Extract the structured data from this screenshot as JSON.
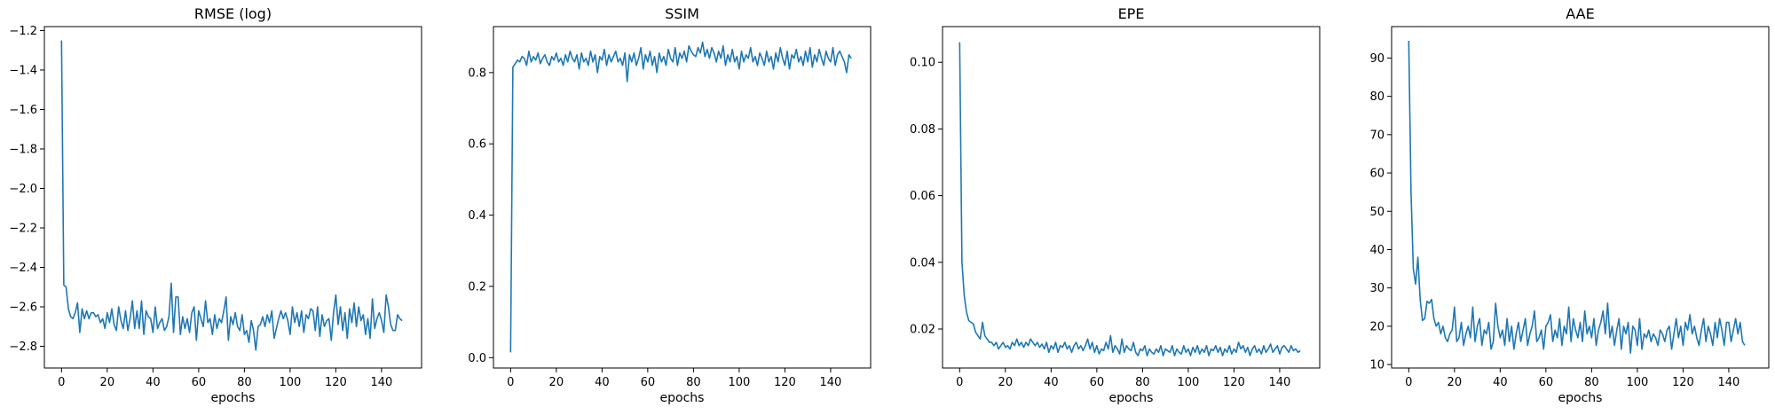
{
  "chart_data": [
    {
      "type": "line",
      "title": "RMSE (log)",
      "xlabel": "epochs",
      "ylabel": "",
      "xlim": [
        -7.5,
        157.5
      ],
      "ylim": [
        -2.91,
        -1.18
      ],
      "xticks": [
        0,
        20,
        40,
        60,
        80,
        100,
        120,
        140
      ],
      "yticks": [
        -2.8,
        -2.6,
        -2.4,
        -2.2,
        -2.0,
        -1.8,
        -1.6,
        -1.4,
        -1.2
      ],
      "ytick_labels": [
        "−2.8",
        "−2.6",
        "−2.4",
        "−2.2",
        "−2.0",
        "−1.8",
        "−1.6",
        "−1.4",
        "−1.2"
      ],
      "color": "#1f77b4",
      "grid": false,
      "series": [
        {
          "values": [
            -1.25,
            -2.49,
            -2.5,
            -2.61,
            -2.65,
            -2.66,
            -2.63,
            -2.58,
            -2.73,
            -2.61,
            -2.66,
            -2.62,
            -2.66,
            -2.63,
            -2.63,
            -2.65,
            -2.64,
            -2.68,
            -2.66,
            -2.71,
            -2.63,
            -2.68,
            -2.61,
            -2.69,
            -2.72,
            -2.6,
            -2.67,
            -2.71,
            -2.62,
            -2.72,
            -2.66,
            -2.57,
            -2.71,
            -2.62,
            -2.71,
            -2.57,
            -2.74,
            -2.62,
            -2.65,
            -2.66,
            -2.73,
            -2.6,
            -2.71,
            -2.68,
            -2.66,
            -2.72,
            -2.7,
            -2.65,
            -2.48,
            -2.73,
            -2.55,
            -2.55,
            -2.74,
            -2.65,
            -2.71,
            -2.66,
            -2.73,
            -2.63,
            -2.6,
            -2.77,
            -2.62,
            -2.66,
            -2.7,
            -2.57,
            -2.68,
            -2.66,
            -2.74,
            -2.64,
            -2.71,
            -2.66,
            -2.68,
            -2.62,
            -2.55,
            -2.77,
            -2.65,
            -2.69,
            -2.63,
            -2.7,
            -2.72,
            -2.64,
            -2.74,
            -2.72,
            -2.78,
            -2.67,
            -2.72,
            -2.82,
            -2.7,
            -2.69,
            -2.65,
            -2.7,
            -2.64,
            -2.68,
            -2.62,
            -2.76,
            -2.71,
            -2.66,
            -2.62,
            -2.66,
            -2.63,
            -2.67,
            -2.74,
            -2.6,
            -2.68,
            -2.63,
            -2.7,
            -2.62,
            -2.73,
            -2.64,
            -2.66,
            -2.61,
            -2.62,
            -2.72,
            -2.6,
            -2.75,
            -2.64,
            -2.7,
            -2.67,
            -2.66,
            -2.77,
            -2.63,
            -2.54,
            -2.69,
            -2.6,
            -2.72,
            -2.63,
            -2.76,
            -2.61,
            -2.68,
            -2.58,
            -2.7,
            -2.6,
            -2.67,
            -2.64,
            -2.74,
            -2.66,
            -2.76,
            -2.56,
            -2.71,
            -2.66,
            -2.63,
            -2.67,
            -2.73,
            -2.54,
            -2.6,
            -2.69,
            -2.72,
            -2.72,
            -2.64,
            -2.66,
            -2.67
          ]
        }
      ]
    },
    {
      "type": "line",
      "title": "SSIM",
      "xlabel": "epochs",
      "ylabel": "",
      "xlim": [
        -7.5,
        157.5
      ],
      "ylim": [
        -0.029,
        0.929
      ],
      "xticks": [
        0,
        20,
        40,
        60,
        80,
        100,
        120,
        140
      ],
      "yticks": [
        0.0,
        0.2,
        0.4,
        0.6,
        0.8
      ],
      "ytick_labels": [
        "0.0",
        "0.2",
        "0.4",
        "0.6",
        "0.8"
      ],
      "color": "#1f77b4",
      "grid": false,
      "series": [
        {
          "values": [
            0.015,
            0.815,
            0.825,
            0.835,
            0.83,
            0.845,
            0.84,
            0.82,
            0.86,
            0.83,
            0.845,
            0.835,
            0.855,
            0.825,
            0.84,
            0.85,
            0.83,
            0.82,
            0.845,
            0.835,
            0.855,
            0.83,
            0.84,
            0.82,
            0.85,
            0.83,
            0.86,
            0.84,
            0.83,
            0.85,
            0.81,
            0.855,
            0.83,
            0.84,
            0.82,
            0.86,
            0.83,
            0.85,
            0.8,
            0.845,
            0.835,
            0.865,
            0.82,
            0.85,
            0.83,
            0.845,
            0.86,
            0.83,
            0.84,
            0.82,
            0.855,
            0.775,
            0.85,
            0.83,
            0.855,
            0.82,
            0.84,
            0.87,
            0.81,
            0.85,
            0.83,
            0.86,
            0.82,
            0.845,
            0.8,
            0.855,
            0.83,
            0.845,
            0.82,
            0.865,
            0.84,
            0.83,
            0.87,
            0.82,
            0.855,
            0.84,
            0.86,
            0.83,
            0.875,
            0.86,
            0.85,
            0.845,
            0.87,
            0.855,
            0.885,
            0.845,
            0.865,
            0.84,
            0.87,
            0.855,
            0.83,
            0.86,
            0.84,
            0.875,
            0.82,
            0.85,
            0.83,
            0.865,
            0.83,
            0.845,
            0.81,
            0.86,
            0.83,
            0.85,
            0.84,
            0.87,
            0.83,
            0.845,
            0.82,
            0.855,
            0.84,
            0.82,
            0.86,
            0.83,
            0.845,
            0.81,
            0.855,
            0.83,
            0.87,
            0.84,
            0.82,
            0.86,
            0.81,
            0.85,
            0.84,
            0.865,
            0.83,
            0.845,
            0.82,
            0.86,
            0.83,
            0.87,
            0.815,
            0.85,
            0.83,
            0.865,
            0.84,
            0.82,
            0.86,
            0.84,
            0.83,
            0.87,
            0.82,
            0.85,
            0.86,
            0.845,
            0.83,
            0.8,
            0.85,
            0.84
          ]
        }
      ]
    },
    {
      "type": "line",
      "title": "EPE",
      "xlabel": "epochs",
      "ylabel": "",
      "xlim": [
        -7.5,
        157.5
      ],
      "ylim": [
        0.0083,
        0.1107
      ],
      "xticks": [
        0,
        20,
        40,
        60,
        80,
        100,
        120,
        140
      ],
      "yticks": [
        0.02,
        0.04,
        0.06,
        0.08,
        0.1
      ],
      "ytick_labels": [
        "0.02",
        "0.04",
        "0.06",
        "0.08",
        "0.10"
      ],
      "color": "#1f77b4",
      "grid": false,
      "series": [
        {
          "values": [
            0.106,
            0.04,
            0.03,
            0.025,
            0.0225,
            0.022,
            0.0215,
            0.019,
            0.018,
            0.017,
            0.022,
            0.018,
            0.017,
            0.016,
            0.016,
            0.015,
            0.016,
            0.014,
            0.015,
            0.016,
            0.0145,
            0.015,
            0.014,
            0.016,
            0.015,
            0.017,
            0.015,
            0.016,
            0.0145,
            0.016,
            0.015,
            0.017,
            0.016,
            0.015,
            0.016,
            0.0145,
            0.0155,
            0.014,
            0.016,
            0.013,
            0.015,
            0.014,
            0.016,
            0.013,
            0.015,
            0.0145,
            0.016,
            0.014,
            0.015,
            0.013,
            0.015,
            0.016,
            0.014,
            0.015,
            0.0135,
            0.015,
            0.017,
            0.014,
            0.016,
            0.013,
            0.015,
            0.0125,
            0.014,
            0.0135,
            0.016,
            0.014,
            0.018,
            0.013,
            0.015,
            0.014,
            0.0125,
            0.017,
            0.013,
            0.015,
            0.014,
            0.0135,
            0.016,
            0.013,
            0.012,
            0.014,
            0.0135,
            0.015,
            0.012,
            0.014,
            0.013,
            0.0125,
            0.014,
            0.013,
            0.015,
            0.012,
            0.014,
            0.0135,
            0.013,
            0.015,
            0.012,
            0.014,
            0.013,
            0.0125,
            0.015,
            0.013,
            0.014,
            0.012,
            0.0145,
            0.013,
            0.015,
            0.0125,
            0.014,
            0.013,
            0.015,
            0.012,
            0.014,
            0.0135,
            0.015,
            0.013,
            0.0145,
            0.012,
            0.014,
            0.013,
            0.015,
            0.0125,
            0.014,
            0.013,
            0.016,
            0.014,
            0.015,
            0.013,
            0.0145,
            0.012,
            0.014,
            0.015,
            0.013,
            0.014,
            0.0125,
            0.015,
            0.013,
            0.014,
            0.0155,
            0.013,
            0.014,
            0.015,
            0.0125,
            0.0145,
            0.015,
            0.014,
            0.013,
            0.015,
            0.0135,
            0.014,
            0.013,
            0.0135
          ]
        }
      ]
    },
    {
      "type": "line",
      "title": "AAE",
      "xlabel": "epochs",
      "ylabel": "",
      "xlim": [
        -7.5,
        157.5
      ],
      "ylim": [
        9.1,
        98.2
      ],
      "xticks": [
        0,
        20,
        40,
        60,
        80,
        100,
        120,
        140
      ],
      "yticks": [
        10,
        20,
        30,
        40,
        50,
        60,
        70,
        80,
        90
      ],
      "ytick_labels": [
        "10",
        "20",
        "30",
        "40",
        "50",
        "60",
        "70",
        "80",
        "90"
      ],
      "color": "#1f77b4",
      "grid": false,
      "series": [
        {
          "values": [
            94.5,
            55,
            35,
            31,
            38,
            27,
            21.5,
            22,
            26.5,
            26,
            27,
            22,
            20,
            21,
            18,
            20,
            17,
            16,
            18,
            19,
            25,
            16,
            17,
            21,
            15,
            18,
            20,
            17,
            25,
            16,
            20,
            22,
            15,
            19,
            18,
            21,
            14,
            16,
            26,
            20,
            17,
            19,
            15,
            22,
            16,
            20,
            14,
            18,
            21,
            16,
            19,
            22,
            15,
            18,
            20,
            24,
            16,
            17,
            19,
            14,
            20,
            21,
            23,
            16,
            19,
            17,
            22,
            15,
            20,
            18,
            25,
            16,
            22,
            19,
            17,
            21,
            16,
            24,
            18,
            20,
            17,
            22,
            15,
            19,
            21,
            24,
            18,
            26,
            17,
            20,
            15,
            19,
            22,
            14,
            20,
            18,
            21,
            13,
            20,
            19,
            15,
            22,
            14,
            18,
            17,
            19,
            16,
            18,
            17,
            15,
            19,
            18,
            16,
            19,
            20,
            14,
            18,
            22,
            17,
            20,
            15,
            21,
            19,
            23,
            18,
            20,
            17,
            15,
            19,
            22,
            16,
            20,
            18,
            15,
            21,
            17,
            22,
            19,
            15,
            21,
            21,
            16,
            19,
            22,
            18,
            21,
            16,
            15
          ]
        }
      ]
    }
  ]
}
